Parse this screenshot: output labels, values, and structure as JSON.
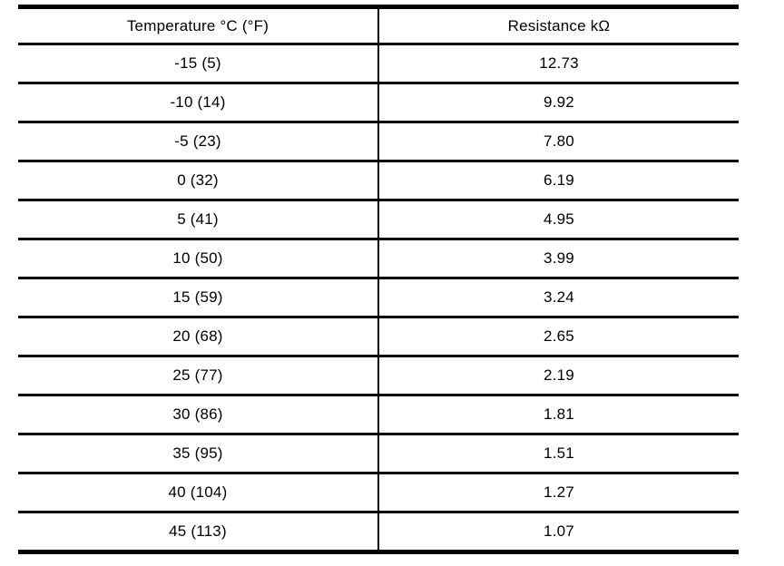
{
  "table": {
    "headers": [
      "Temperature °C (°F)",
      "Resistance kΩ"
    ],
    "rows": [
      [
        "-15 (5)",
        "12.73"
      ],
      [
        "-10 (14)",
        "9.92"
      ],
      [
        "-5 (23)",
        "7.80"
      ],
      [
        "0 (32)",
        "6.19"
      ],
      [
        "5 (41)",
        "4.95"
      ],
      [
        "10 (50)",
        "3.99"
      ],
      [
        "15 (59)",
        "3.24"
      ],
      [
        "20 (68)",
        "2.65"
      ],
      [
        "25 (77)",
        "2.19"
      ],
      [
        "30 (86)",
        "1.81"
      ],
      [
        "35 (95)",
        "1.51"
      ],
      [
        "40 (104)",
        "1.27"
      ],
      [
        "45 (113)",
        "1.07"
      ]
    ]
  },
  "chart_data": {
    "type": "table",
    "columns": [
      "Temperature °C (°F)",
      "Resistance kΩ"
    ],
    "temperature_c": [
      -15,
      -10,
      -5,
      0,
      5,
      10,
      15,
      20,
      25,
      30,
      35,
      40,
      45
    ],
    "temperature_f": [
      5,
      14,
      23,
      32,
      41,
      50,
      59,
      68,
      77,
      86,
      95,
      104,
      113
    ],
    "resistance_kohm": [
      12.73,
      9.92,
      7.8,
      6.19,
      4.95,
      3.99,
      3.24,
      2.65,
      2.19,
      1.81,
      1.51,
      1.27,
      1.07
    ]
  },
  "colors": {
    "line": "#000000",
    "background": "#ffffff"
  }
}
